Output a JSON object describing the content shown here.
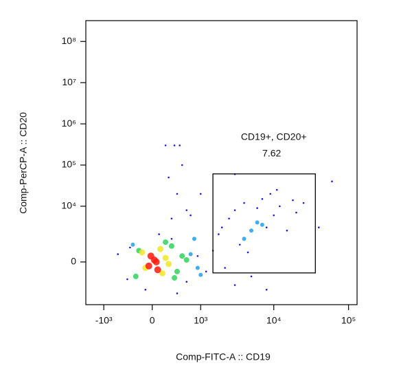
{
  "chart_data": {
    "type": "scatter",
    "x_label": "Comp-FITC-A :: CD19",
    "y_label": "Comp-PerCP-A :: CD20",
    "scale": "biexponential",
    "xlim": [
      -1800,
      130000
    ],
    "ylim": [
      -4800,
      320000000
    ],
    "xticks": [
      {
        "value": -1000,
        "label": "-10³"
      },
      0,
      {
        "value": 1000,
        "label": "10³"
      },
      {
        "value": 10000,
        "label": "10⁴"
      },
      {
        "value": 100000,
        "label": "10⁵"
      }
    ],
    "yticks": [
      0,
      {
        "value": 10000,
        "label": "10⁴"
      },
      {
        "value": 100000,
        "label": "10⁵"
      },
      {
        "value": 1000000,
        "label": "10⁶"
      },
      {
        "value": 10000000,
        "label": "10⁷"
      },
      {
        "value": 100000000,
        "label": "10⁸"
      }
    ],
    "series": [
      {
        "color": "#1a1adc",
        "x": [
          -400,
          -350,
          600,
          900,
          1200,
          1500,
          1800,
          2200,
          2500,
          3000,
          3500,
          4000,
          5000,
          6000,
          7000,
          8000,
          9000,
          10000,
          12000,
          15000,
          18000,
          20000,
          25000,
          3000,
          4500,
          2000,
          8000,
          11000,
          300,
          400,
          250,
          500,
          350,
          200,
          450,
          600,
          300,
          400,
          -100,
          100,
          700,
          -600,
          1000,
          60000,
          40000,
          3000
        ],
        "y": [
          -1000,
          800,
          -1200,
          300,
          -500,
          600,
          2000,
          -300,
          5000,
          8000,
          1000,
          12000,
          -800,
          9000,
          15000,
          3000,
          20000,
          6000,
          10000,
          2500,
          14000,
          7000,
          12000,
          -1500,
          500,
          3000,
          -2000,
          25000,
          5000,
          20000,
          50000,
          100000,
          300000,
          300000,
          300000,
          8000,
          1500,
          -2500,
          -2000,
          2000,
          6000,
          400,
          20000,
          40000,
          3000,
          60000
        ]
      },
      {
        "color": "#1ea0f0",
        "x": [
          700,
          900,
          -300,
          800,
          1000,
          5000,
          7000,
          4000,
          6000
        ],
        "y": [
          400,
          -300,
          1000,
          1500,
          -700,
          2500,
          3500,
          1500,
          4000
        ]
      },
      {
        "color": "#2ed25a",
        "x": [
          -250,
          300,
          400,
          500,
          -200,
          350,
          600,
          200
        ],
        "y": [
          -800,
          900,
          -500,
          300,
          600,
          -900,
          100,
          1200
        ]
      },
      {
        "color": "#f0e628",
        "x": [
          -150,
          150,
          200,
          -100,
          120,
          250
        ],
        "y": [
          500,
          -600,
          200,
          -300,
          700,
          -100
        ]
      },
      {
        "color": "#ff1a0a",
        "x": [
          -50,
          30,
          80,
          -20,
          60
        ],
        "y": [
          -200,
          100,
          -400,
          300,
          0
        ]
      }
    ],
    "gates": [
      {
        "name": "CD19+, CD20+",
        "percent": 7.62,
        "x": [
          1500,
          36000
        ],
        "y": [
          -580,
          61000
        ]
      }
    ]
  }
}
